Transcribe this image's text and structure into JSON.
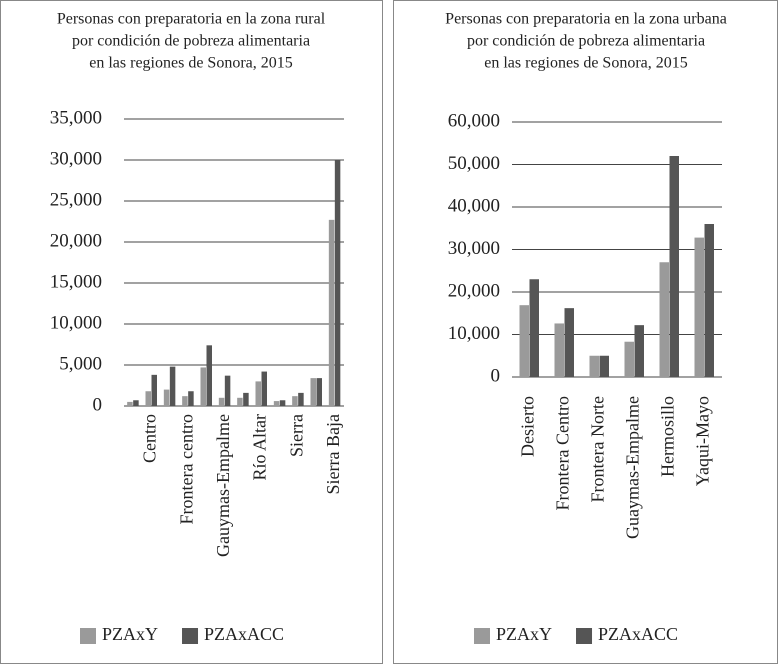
{
  "chart_data": [
    {
      "type": "bar",
      "title": [
        "Personas con preparatoria en la zona rural",
        "por condición de pobreza alimentaria",
        "en las regiones de Sonora, 2015"
      ],
      "categories": [
        null,
        "Centro",
        null,
        "Frontera centro",
        null,
        "Gauymas-Empalme",
        null,
        "Río Altar",
        null,
        "Sierra",
        null,
        "Sierra Baja"
      ],
      "series": [
        {
          "name": "PZAxY",
          "color": "#9a9a9a",
          "values": [
            500,
            1800,
            2000,
            1200,
            4700,
            1000,
            1000,
            3000,
            600,
            1200,
            3400,
            22700
          ]
        },
        {
          "name": "PZAxACC",
          "color": "#555555",
          "values": [
            700,
            3800,
            4800,
            1800,
            7400,
            3700,
            1600,
            4200,
            700,
            1600,
            3400,
            30000
          ]
        }
      ],
      "ylim": [
        0,
        35000
      ],
      "yticks": [
        0,
        {
          "value": 5000,
          "label": "5,000"
        },
        {
          "value": 10000,
          "label": "10,000"
        },
        {
          "value": 15000,
          "label": "15,000"
        },
        {
          "value": 20000,
          "label": "20,000"
        },
        {
          "value": 25000,
          "label": "25,000"
        },
        {
          "value": 30000,
          "label": "30,000"
        },
        {
          "value": 35000,
          "label": "35,000"
        }
      ],
      "grid": true,
      "legend": "bottom"
    },
    {
      "type": "bar",
      "title": [
        "Personas con preparatoria en la zona urbana",
        "por condición de pobreza alimentaria",
        "en las regiones de Sonora, 2015"
      ],
      "categories": [
        "Desierto",
        "Frontera Centro",
        "Frontera Norte",
        "Guaymas-Empalme",
        "Hermosillo",
        "Yaqui-Mayo"
      ],
      "series": [
        {
          "name": "PZAxY",
          "color": "#9a9a9a",
          "values": [
            16900,
            12600,
            5000,
            8300,
            27000,
            32800
          ]
        },
        {
          "name": "PZAxACC",
          "color": "#555555",
          "values": [
            23000,
            16200,
            5000,
            12200,
            52000,
            36000
          ]
        }
      ],
      "ylim": [
        0,
        60000
      ],
      "yticks": [
        0,
        {
          "value": 10000,
          "label": "10,000"
        },
        {
          "value": 20000,
          "label": "20,000"
        },
        {
          "value": 30000,
          "label": "30,000"
        },
        {
          "value": 40000,
          "label": "40,000"
        },
        {
          "value": 50000,
          "label": "50,000"
        },
        {
          "value": 60000,
          "label": "60,000"
        }
      ],
      "grid": true,
      "legend": "bottom"
    }
  ]
}
